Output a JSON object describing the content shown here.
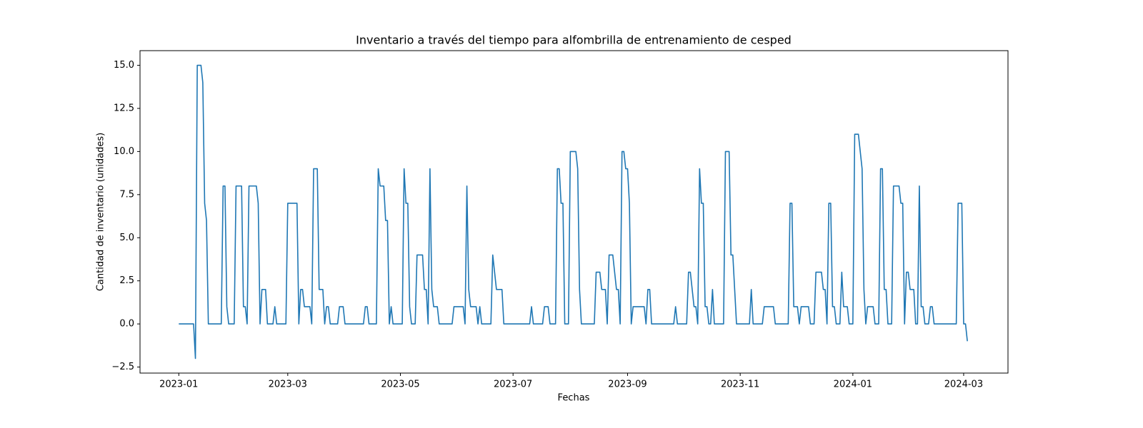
{
  "chart_data": {
    "type": "line",
    "title": "Inventario a través del tiempo para alfombrilla de entrenamiento de cesped",
    "xlabel": "Fechas",
    "ylabel": "Cantidad de inventario (unidades)",
    "color": "#1f77b4",
    "x": [
      "2023-01-01",
      "2023-01-09",
      "2023-01-10",
      "2023-01-11",
      "2023-01-13",
      "2023-01-14",
      "2023-01-15",
      "2023-01-16",
      "2023-01-17",
      "2023-01-24",
      "2023-01-25",
      "2023-01-26",
      "2023-01-27",
      "2023-01-28",
      "2023-01-31",
      "2023-02-01",
      "2023-02-04",
      "2023-02-05",
      "2023-02-06",
      "2023-02-07",
      "2023-02-08",
      "2023-02-12",
      "2023-02-13",
      "2023-02-14",
      "2023-02-15",
      "2023-02-17",
      "2023-02-18",
      "2023-02-21",
      "2023-02-22",
      "2023-02-23",
      "2023-02-28",
      "2023-03-01",
      "2023-03-06",
      "2023-03-07",
      "2023-03-08",
      "2023-03-09",
      "2023-03-10",
      "2023-03-13",
      "2023-03-14",
      "2023-03-15",
      "2023-03-17",
      "2023-03-18",
      "2023-03-20",
      "2023-03-21",
      "2023-03-22",
      "2023-03-23",
      "2023-03-24",
      "2023-03-28",
      "2023-03-29",
      "2023-03-31",
      "2023-04-01",
      "2023-04-11",
      "2023-04-12",
      "2023-04-13",
      "2023-04-14",
      "2023-04-18",
      "2023-04-19",
      "2023-04-20",
      "2023-04-22",
      "2023-04-23",
      "2023-04-24",
      "2023-04-25",
      "2023-04-26",
      "2023-04-27",
      "2023-05-02",
      "2023-05-03",
      "2023-05-04",
      "2023-05-05",
      "2023-05-06",
      "2023-05-07",
      "2023-05-09",
      "2023-05-10",
      "2023-05-13",
      "2023-05-14",
      "2023-05-15",
      "2023-05-16",
      "2023-05-17",
      "2023-05-18",
      "2023-05-19",
      "2023-05-21",
      "2023-05-22",
      "2023-05-29",
      "2023-05-30",
      "2023-06-04",
      "2023-06-05",
      "2023-06-06",
      "2023-06-07",
      "2023-06-08",
      "2023-06-11",
      "2023-06-12",
      "2023-06-13",
      "2023-06-14",
      "2023-06-19",
      "2023-06-20",
      "2023-06-22",
      "2023-06-25",
      "2023-06-26",
      "2023-07-10",
      "2023-07-11",
      "2023-07-12",
      "2023-07-17",
      "2023-07-18",
      "2023-07-20",
      "2023-07-21",
      "2023-07-24",
      "2023-07-25",
      "2023-07-26",
      "2023-07-27",
      "2023-07-28",
      "2023-07-29",
      "2023-07-31",
      "2023-08-01",
      "2023-08-04",
      "2023-08-05",
      "2023-08-06",
      "2023-08-07",
      "2023-08-14",
      "2023-08-15",
      "2023-08-17",
      "2023-08-18",
      "2023-08-20",
      "2023-08-21",
      "2023-08-22",
      "2023-08-24",
      "2023-08-26",
      "2023-08-27",
      "2023-08-28",
      "2023-08-29",
      "2023-08-30",
      "2023-08-31",
      "2023-09-01",
      "2023-09-02",
      "2023-09-03",
      "2023-09-04",
      "2023-09-10",
      "2023-09-11",
      "2023-09-12",
      "2023-09-13",
      "2023-09-14",
      "2023-09-26",
      "2023-09-27",
      "2023-09-28",
      "2023-10-03",
      "2023-10-04",
      "2023-10-05",
      "2023-10-07",
      "2023-10-08",
      "2023-10-09",
      "2023-10-10",
      "2023-10-11",
      "2023-10-12",
      "2023-10-13",
      "2023-10-14",
      "2023-10-15",
      "2023-10-16",
      "2023-10-17",
      "2023-10-18",
      "2023-10-23",
      "2023-10-24",
      "2023-10-26",
      "2023-10-27",
      "2023-10-28",
      "2023-10-30",
      "2023-11-06",
      "2023-11-07",
      "2023-11-08",
      "2023-11-13",
      "2023-11-14",
      "2023-11-19",
      "2023-11-20",
      "2023-11-27",
      "2023-11-28",
      "2023-11-29",
      "2023-11-30",
      "2023-12-02",
      "2023-12-03",
      "2023-12-04",
      "2023-12-08",
      "2023-12-09",
      "2023-12-11",
      "2023-12-12",
      "2023-12-15",
      "2023-12-16",
      "2023-12-17",
      "2023-12-18",
      "2023-12-19",
      "2023-12-20",
      "2023-12-21",
      "2023-12-22",
      "2023-12-23",
      "2023-12-25",
      "2023-12-26",
      "2023-12-27",
      "2023-12-29",
      "2023-12-30",
      "2024-01-01",
      "2024-01-02",
      "2024-01-04",
      "2024-01-06",
      "2024-01-07",
      "2024-01-08",
      "2024-01-09",
      "2024-01-12",
      "2024-01-13",
      "2024-01-15",
      "2024-01-16",
      "2024-01-17",
      "2024-01-18",
      "2024-01-19",
      "2024-01-20",
      "2024-01-22",
      "2024-01-23",
      "2024-01-26",
      "2024-01-27",
      "2024-01-28",
      "2024-01-29",
      "2024-01-30",
      "2024-01-31",
      "2024-02-01",
      "2024-02-03",
      "2024-02-04",
      "2024-02-05",
      "2024-02-06",
      "2024-02-07",
      "2024-02-08",
      "2024-02-09",
      "2024-02-11",
      "2024-02-12",
      "2024-02-13",
      "2024-02-14",
      "2024-02-26",
      "2024-02-27",
      "2024-02-29",
      "2024-03-01",
      "2024-03-02",
      "2024-03-03"
    ],
    "values": [
      0,
      0,
      -2,
      15,
      15,
      14,
      7,
      6,
      0,
      0,
      8,
      8,
      1,
      0,
      0,
      8,
      8,
      1,
      1,
      0,
      8,
      8,
      7,
      0,
      2,
      2,
      0,
      0,
      1,
      0,
      0,
      7,
      7,
      0,
      2,
      2,
      1,
      1,
      0,
      9,
      9,
      2,
      2,
      0,
      1,
      1,
      0,
      0,
      1,
      1,
      0,
      0,
      1,
      1,
      0,
      0,
      9,
      8,
      8,
      6,
      6,
      0,
      1,
      0,
      0,
      9,
      7,
      7,
      1,
      0,
      0,
      4,
      4,
      2,
      2,
      0,
      9,
      2,
      1,
      1,
      0,
      0,
      1,
      1,
      0,
      8,
      2,
      1,
      1,
      0,
      1,
      0,
      0,
      4,
      2,
      2,
      0,
      0,
      1,
      0,
      0,
      1,
      1,
      0,
      0,
      9,
      9,
      7,
      7,
      0,
      0,
      10,
      10,
      9,
      2,
      0,
      0,
      3,
      3,
      2,
      2,
      0,
      4,
      4,
      2,
      2,
      0,
      10,
      10,
      9,
      9,
      7,
      0,
      1,
      1,
      0,
      2,
      2,
      0,
      0,
      1,
      0,
      0,
      3,
      3,
      1,
      1,
      0,
      9,
      7,
      7,
      1,
      1,
      0,
      0,
      2,
      0,
      0,
      10,
      10,
      4,
      4,
      0,
      0,
      2,
      0,
      0,
      1,
      1,
      0,
      0,
      7,
      7,
      1,
      1,
      0,
      1,
      1,
      0,
      0,
      3,
      3,
      2,
      2,
      0,
      7,
      7,
      1,
      1,
      0,
      0,
      3,
      1,
      1,
      0,
      0,
      11,
      11,
      9,
      2,
      0,
      1,
      1,
      0,
      0,
      9,
      9,
      2,
      2,
      0,
      0,
      8,
      8,
      7,
      7,
      0,
      3,
      3,
      2,
      2,
      0,
      0,
      8,
      1,
      1,
      0,
      0,
      1,
      1,
      0,
      0,
      7,
      7,
      0,
      0,
      -1
    ],
    "xlim": [
      "2022-12-11",
      "2024-03-25"
    ],
    "xticks": [
      {
        "value": "2023-01-01",
        "label": "2023-01"
      },
      {
        "value": "2023-03-01",
        "label": "2023-03"
      },
      {
        "value": "2023-05-01",
        "label": "2023-05"
      },
      {
        "value": "2023-07-01",
        "label": "2023-07"
      },
      {
        "value": "2023-09-01",
        "label": "2023-09"
      },
      {
        "value": "2023-11-01",
        "label": "2023-11"
      },
      {
        "value": "2024-01-01",
        "label": "2024-01"
      },
      {
        "value": "2024-03-01",
        "label": "2024-03"
      }
    ],
    "ylim": [
      -2.85,
      15.85
    ],
    "yticks": [
      {
        "value": -2.5,
        "label": "−2.5"
      },
      {
        "value": 0,
        "label": "0.0"
      },
      {
        "value": 2.5,
        "label": "2.5"
      },
      {
        "value": 5,
        "label": "5.0"
      },
      {
        "value": 7.5,
        "label": "7.5"
      },
      {
        "value": 10,
        "label": "10.0"
      },
      {
        "value": 12.5,
        "label": "12.5"
      },
      {
        "value": 15,
        "label": "15.0"
      }
    ]
  }
}
